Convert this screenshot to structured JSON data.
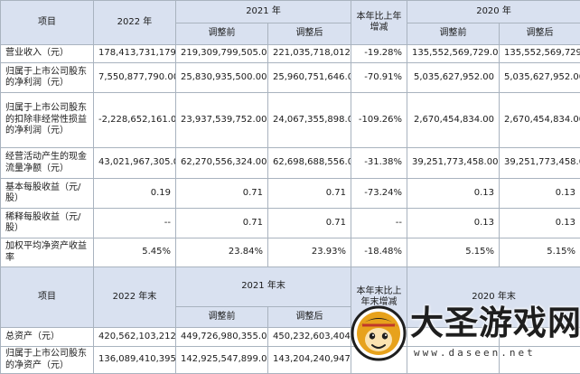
{
  "header1": {
    "item": "项目",
    "y2022": "2022 年",
    "y2021": "2021 年",
    "yoy": "本年比上年增减",
    "y2020": "2020 年"
  },
  "header2": {
    "before": "调整前",
    "after": "调整后"
  },
  "rows": [
    {
      "label": "营业收入（元）",
      "v2022": "178,413,731,179.00",
      "v2021b": "219,309,799,505.00",
      "v2021a": "221,035,718,012.00",
      "chg": "-19.28%",
      "v2020b": "135,552,569,729.00",
      "v2020a": "135,552,569,729.00"
    },
    {
      "label": "归属于上市公司股东的净利润（元）",
      "v2022": "7,550,877,790.00",
      "v2021b": "25,830,935,500.00",
      "v2021a": "25,960,751,646.00",
      "chg": "-70.91%",
      "v2020b": "5,035,627,952.00",
      "v2020a": "5,035,627,952.00"
    },
    {
      "label": "归属于上市公司股东的扣除非经常性损益的净利润（元）",
      "v2022": "-2,228,652,161.00",
      "v2021b": "23,937,539,752.00",
      "v2021a": "24,067,355,898.00",
      "chg": "-109.26%",
      "v2020b": "2,670,454,834.00",
      "v2020a": "2,670,454,834.00"
    },
    {
      "label": "经营活动产生的现金流量净额（元）",
      "v2022": "43,021,967,305.00",
      "v2021b": "62,270,556,324.00",
      "v2021a": "62,698,688,556.00",
      "chg": "-31.38%",
      "v2020b": "39,251,773,458.00",
      "v2020a": "39,251,773,458.00"
    },
    {
      "label": "基本每股收益（元/股）",
      "v2022": "0.19",
      "v2021b": "0.71",
      "v2021a": "0.71",
      "chg": "-73.24%",
      "v2020b": "0.13",
      "v2020a": "0.13"
    },
    {
      "label": "稀释每股收益（元/股）",
      "v2022": "--",
      "v2021b": "0.71",
      "v2021a": "0.71",
      "chg": "--",
      "v2020b": "0.13",
      "v2020a": "0.13"
    },
    {
      "label": "加权平均净资产收益率",
      "v2022": "5.45%",
      "v2021b": "23.84%",
      "v2021a": "23.93%",
      "chg": "-18.48%",
      "v2020b": "5.15%",
      "v2020a": "5.15%"
    }
  ],
  "header3": {
    "item": "项目",
    "y2022": "2022 年末",
    "y2021": "2021 年末",
    "yoy": "本年末比上年末增减",
    "y2020": "2020 年末"
  },
  "header4": {
    "before": "调整前",
    "after": "调整后"
  },
  "rows2": [
    {
      "label": "总资产（元）",
      "v2022": "420,562,103,212.00",
      "v2021b": "449,726,980,355.00",
      "v2021a": "450,232,603,404.00",
      "chg": "",
      "v2020b": "",
      "v2020a": ""
    },
    {
      "label": "归属于上市公司股东的净资产（元）",
      "v2022": "136,089,410,395.00",
      "v2021b": "142,925,547,899.00",
      "v2021a": "143,204,240,947.00",
      "chg": "",
      "v2020b": "",
      "v2020a": ""
    }
  ],
  "watermark": {
    "title": "大圣游戏网",
    "url": "www.daseen.net"
  }
}
